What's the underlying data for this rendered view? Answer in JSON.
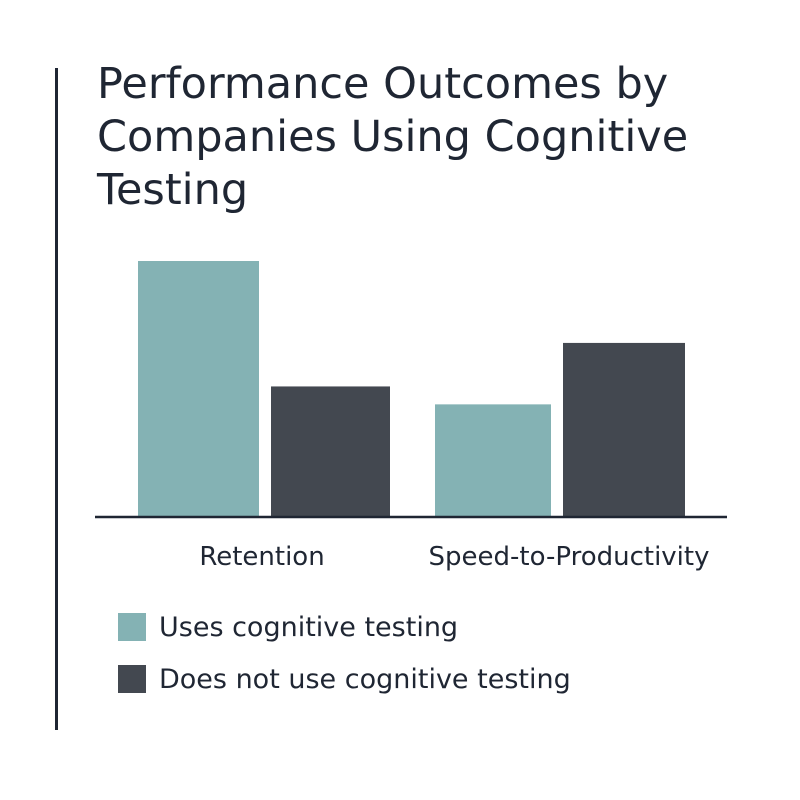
{
  "chart_data": {
    "type": "bar",
    "title": "Performance Outcomes by Companies Using Cognitive Testing",
    "categories": [
      "Retention",
      "Speed-to-Productivity"
    ],
    "series": [
      {
        "name": "Uses cognitive testing",
        "color": "#84b2b4",
        "values": [
          100,
          44
        ]
      },
      {
        "name": "Does not use cognitive testing",
        "color": "#434850",
        "values": [
          51,
          68
        ]
      }
    ],
    "ylim": [
      0,
      100
    ],
    "grid": false,
    "legend": "bottom-left"
  }
}
